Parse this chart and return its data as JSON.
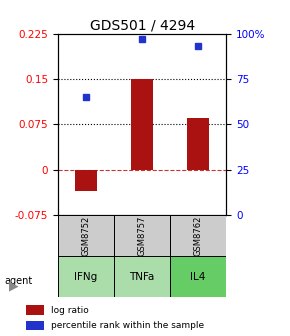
{
  "title": "GDS501 / 4294",
  "samples": [
    "GSM8752",
    "GSM8757",
    "GSM8762"
  ],
  "agents": [
    "IFNg",
    "TNFa",
    "IL4"
  ],
  "log_ratios": [
    -0.035,
    0.15,
    0.085
  ],
  "percentile_ranks": [
    0.65,
    0.97,
    0.93
  ],
  "ylim_left": [
    -0.075,
    0.225
  ],
  "yticks_left": [
    -0.075,
    0.0,
    0.075,
    0.15,
    0.225
  ],
  "ytick_labels_left": [
    "-0.075",
    "0",
    "0.075",
    "0.15",
    "0.225"
  ],
  "yticks_right": [
    0.0,
    0.25,
    0.5,
    0.75,
    1.0
  ],
  "ytick_labels_right": [
    "0",
    "25",
    "50",
    "75",
    "100%"
  ],
  "hline_dotted": [
    0.075,
    0.15
  ],
  "hline_dashed": 0.0,
  "bar_color": "#aa1111",
  "dot_color": "#2233cc",
  "agent_colors": [
    "#aaddaa",
    "#aaddaa",
    "#66cc66"
  ],
  "sample_box_color": "#cccccc",
  "bar_width": 0.4,
  "legend_bar_label": "log ratio",
  "legend_dot_label": "percentile rank within the sample",
  "title_fontsize": 10,
  "tick_fontsize": 7.5
}
